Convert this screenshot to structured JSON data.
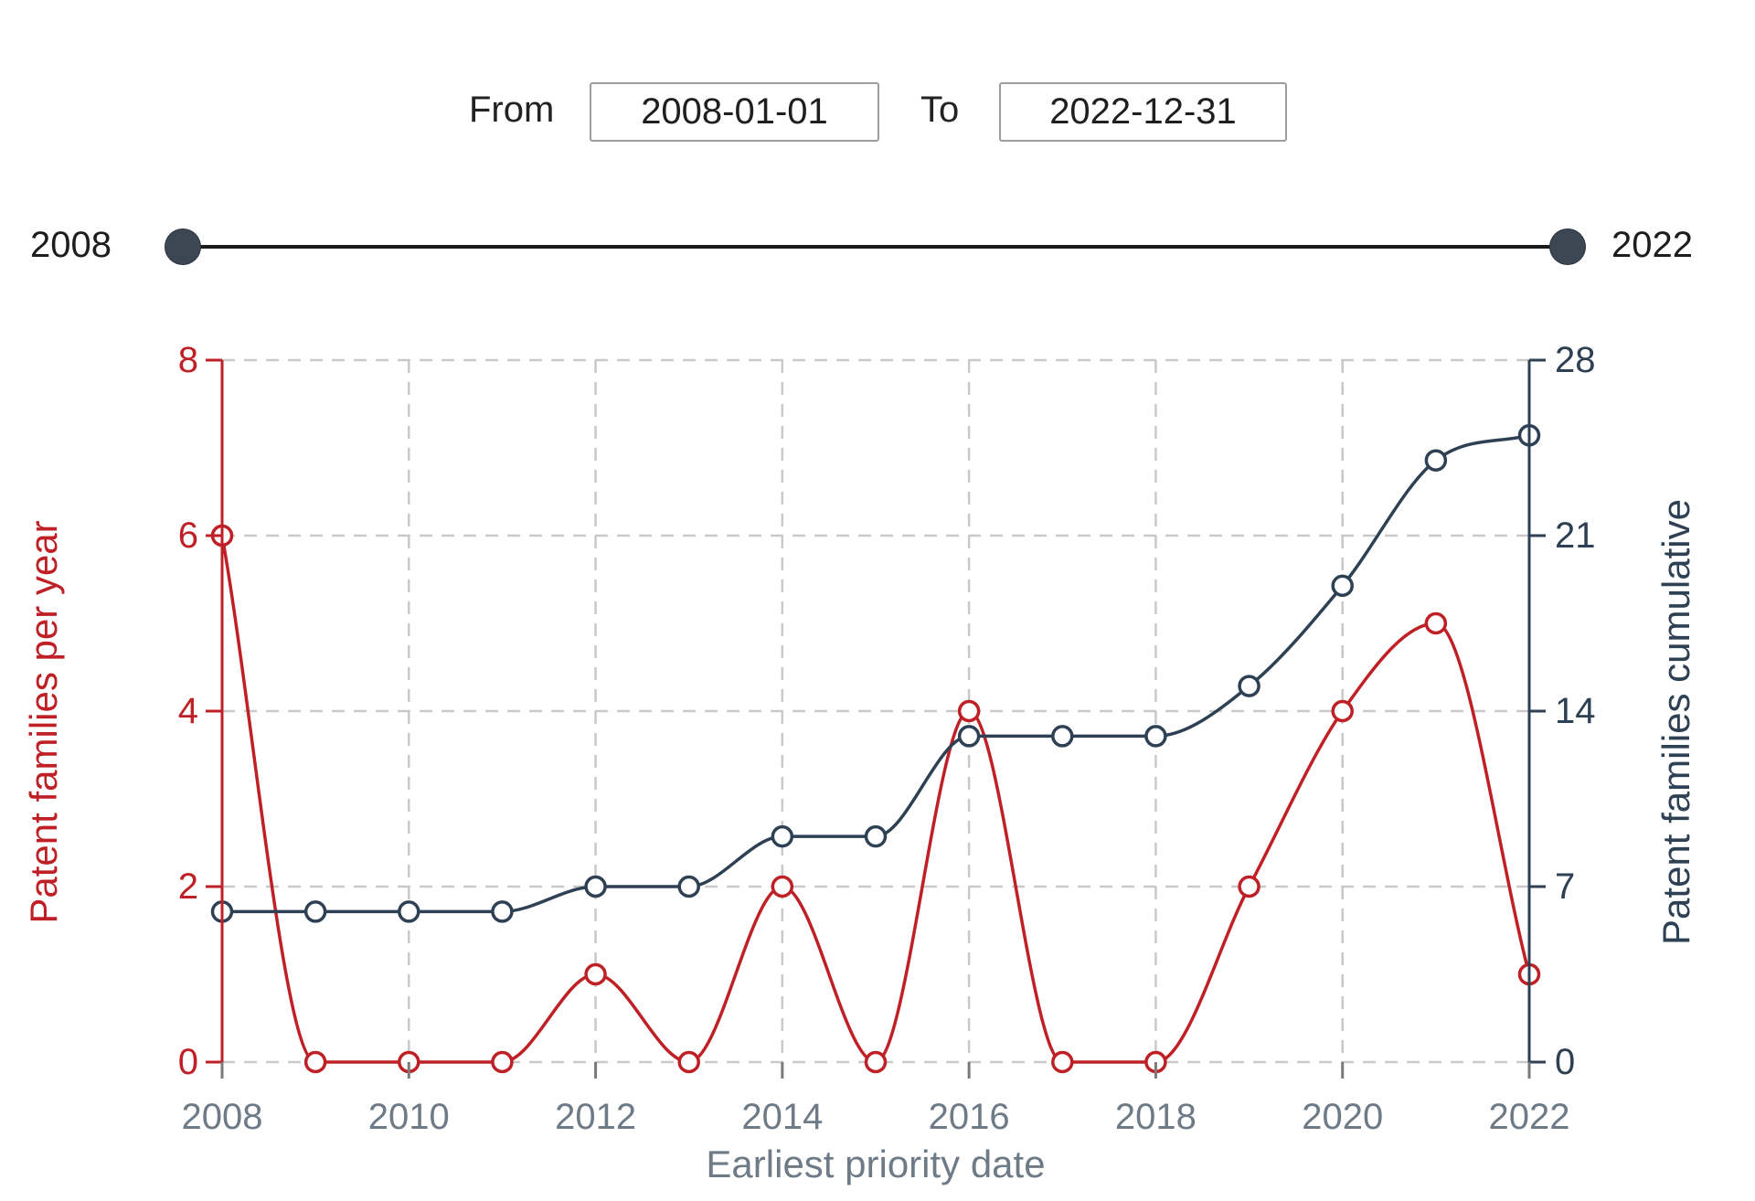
{
  "filters": {
    "from_label": "From",
    "from_value": "2008-01-01",
    "to_label": "To",
    "to_value": "2022-12-31"
  },
  "slider": {
    "min_label": "2008",
    "max_label": "2022",
    "handle_color": "#3d4754",
    "track_color": "#1a1a1a"
  },
  "chart_data": {
    "type": "line",
    "x": [
      2008,
      2009,
      2010,
      2011,
      2012,
      2013,
      2014,
      2015,
      2016,
      2017,
      2018,
      2019,
      2020,
      2021,
      2022
    ],
    "series": [
      {
        "name": "Patent families per year",
        "axis": "left",
        "color": "#bf2026",
        "values": [
          6,
          0,
          0,
          0,
          1,
          0,
          2,
          0,
          4,
          0,
          0,
          2,
          4,
          5,
          1
        ]
      },
      {
        "name": "Patent families cumulative",
        "axis": "right",
        "color": "#2e4053",
        "values": [
          6,
          6,
          6,
          6,
          7,
          7,
          9,
          9,
          13,
          13,
          13,
          15,
          19,
          24,
          25
        ]
      }
    ],
    "xlabel": "Earliest priority date",
    "ylabel_left": "Patent families per year",
    "ylabel_right": "Patent families cumulative",
    "ylim_left": [
      0,
      8
    ],
    "ylim_right": [
      0,
      28
    ],
    "yticks_left": [
      0,
      2,
      4,
      6,
      8
    ],
    "yticks_right": [
      0,
      7,
      14,
      21,
      28
    ],
    "xticks": [
      2008,
      2010,
      2012,
      2014,
      2016,
      2018,
      2020,
      2022
    ],
    "grid": true,
    "marker": "open-circle",
    "legend_position": "none",
    "x_tick_color": "#6e7b87",
    "grid_color": "#c9c9c9"
  }
}
